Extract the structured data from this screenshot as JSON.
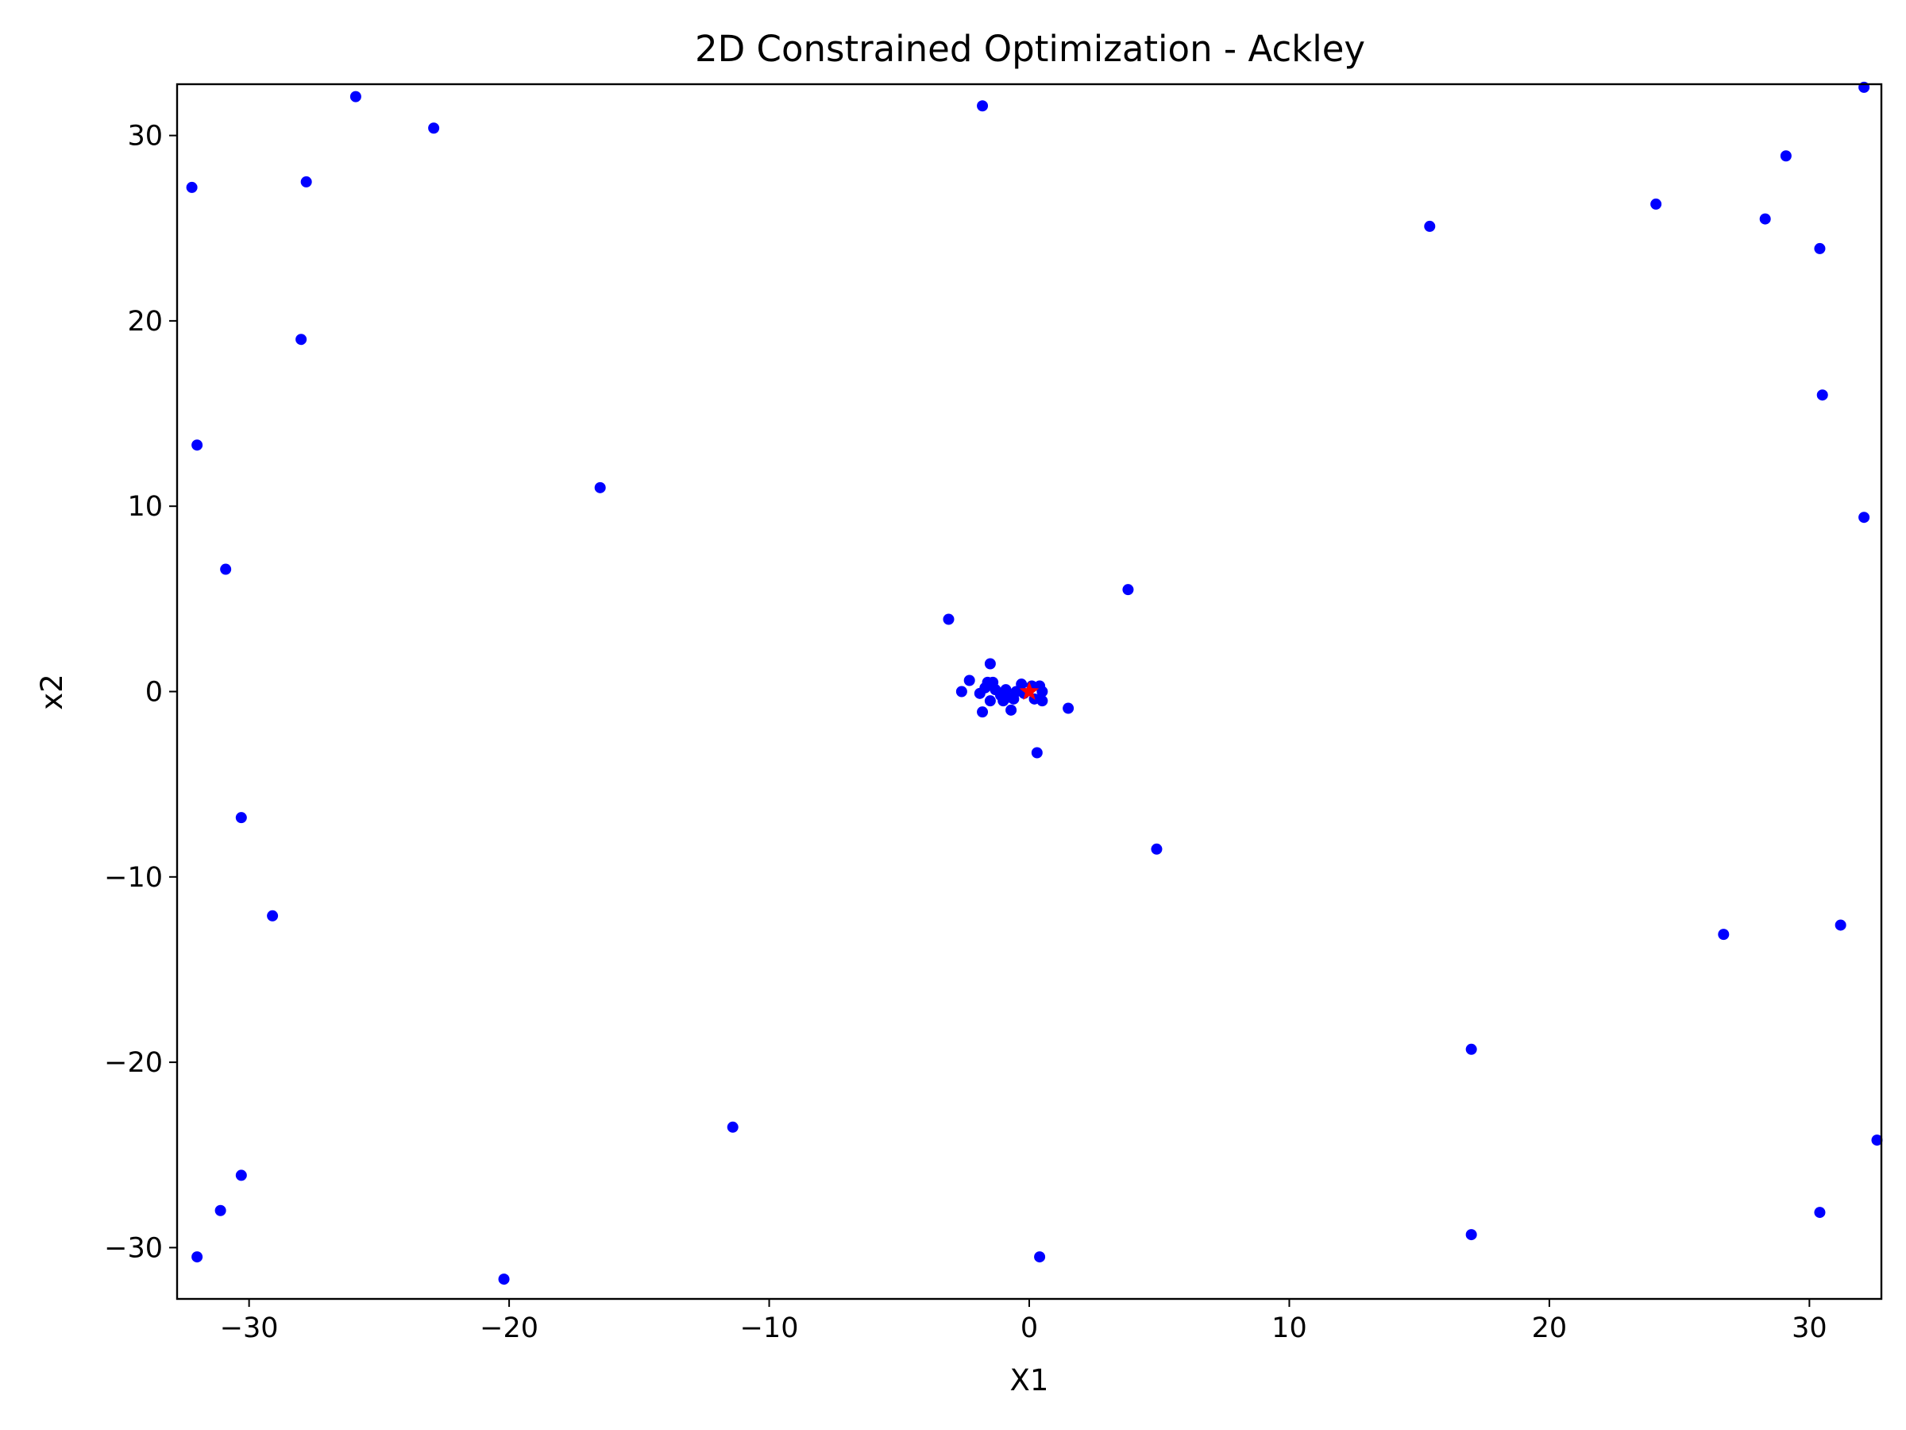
{
  "chart_data": {
    "type": "scatter",
    "title": "2D Constrained Optimization - Ackley",
    "xlabel": "X1",
    "ylabel": "x2",
    "xlim": [
      -32.768,
      32.768
    ],
    "ylim": [
      -32.768,
      32.768
    ],
    "xticks": [
      -30,
      -20,
      -10,
      0,
      10,
      20,
      30
    ],
    "yticks": [
      -30,
      -20,
      -10,
      0,
      10,
      20,
      30
    ],
    "xtick_labels": [
      "−30",
      "−20",
      "−10",
      "0",
      "10",
      "20",
      "30"
    ],
    "ytick_labels": [
      "−30",
      "−20",
      "−10",
      "0",
      "10",
      "20",
      "30"
    ],
    "grid": false,
    "legend": "none",
    "series": [
      {
        "marker": "dot",
        "color": "#0000ff",
        "points": [
          [
            -32.2,
            27.2
          ],
          [
            -25.9,
            32.1
          ],
          [
            -22.9,
            30.4
          ],
          [
            -27.8,
            27.5
          ],
          [
            -28.0,
            19.0
          ],
          [
            -32.0,
            13.3
          ],
          [
            -30.9,
            6.6
          ],
          [
            -16.5,
            11.0
          ],
          [
            -30.3,
            -6.8
          ],
          [
            -29.1,
            -12.1
          ],
          [
            -30.3,
            -26.1
          ],
          [
            -31.1,
            -28.0
          ],
          [
            -32.0,
            -30.5
          ],
          [
            -20.2,
            -31.7
          ],
          [
            -11.4,
            -23.5
          ],
          [
            -1.8,
            31.6
          ],
          [
            15.4,
            25.1
          ],
          [
            24.1,
            26.3
          ],
          [
            28.3,
            25.5
          ],
          [
            29.1,
            28.9
          ],
          [
            32.1,
            32.6
          ],
          [
            30.4,
            23.9
          ],
          [
            30.5,
            16.0
          ],
          [
            32.1,
            9.4
          ],
          [
            3.8,
            5.5
          ],
          [
            -3.1,
            3.9
          ],
          [
            4.9,
            -8.5
          ],
          [
            0.3,
            -3.3
          ],
          [
            1.5,
            -0.9
          ],
          [
            26.7,
            -13.1
          ],
          [
            31.2,
            -12.6
          ],
          [
            17.0,
            -19.3
          ],
          [
            32.6,
            -24.2
          ],
          [
            30.4,
            -28.1
          ],
          [
            17.0,
            -29.3
          ],
          [
            0.4,
            -30.5
          ],
          [
            -1.5,
            1.5
          ],
          [
            -2.3,
            0.6
          ],
          [
            -2.6,
            0.0
          ],
          [
            -1.9,
            -0.1
          ],
          [
            -1.6,
            0.5
          ],
          [
            -1.4,
            0.5
          ],
          [
            -1.8,
            -1.1
          ],
          [
            -1.5,
            -0.5
          ],
          [
            -1.3,
            0.1
          ],
          [
            -1.1,
            -0.2
          ],
          [
            -0.9,
            0.1
          ],
          [
            -1.0,
            -0.5
          ],
          [
            -0.8,
            -0.3
          ],
          [
            -0.7,
            -1.0
          ],
          [
            -0.5,
            0.0
          ],
          [
            -0.3,
            0.4
          ],
          [
            -0.2,
            -0.1
          ],
          [
            0.1,
            0.3
          ],
          [
            0.2,
            -0.4
          ],
          [
            0.4,
            0.3
          ],
          [
            0.5,
            0.0
          ],
          [
            0.5,
            -0.5
          ],
          [
            -1.7,
            0.2
          ],
          [
            -0.6,
            -0.4
          ]
        ]
      },
      {
        "marker": "star",
        "color": "#ff0000",
        "points": [
          [
            0.0,
            0.0
          ]
        ]
      }
    ]
  }
}
